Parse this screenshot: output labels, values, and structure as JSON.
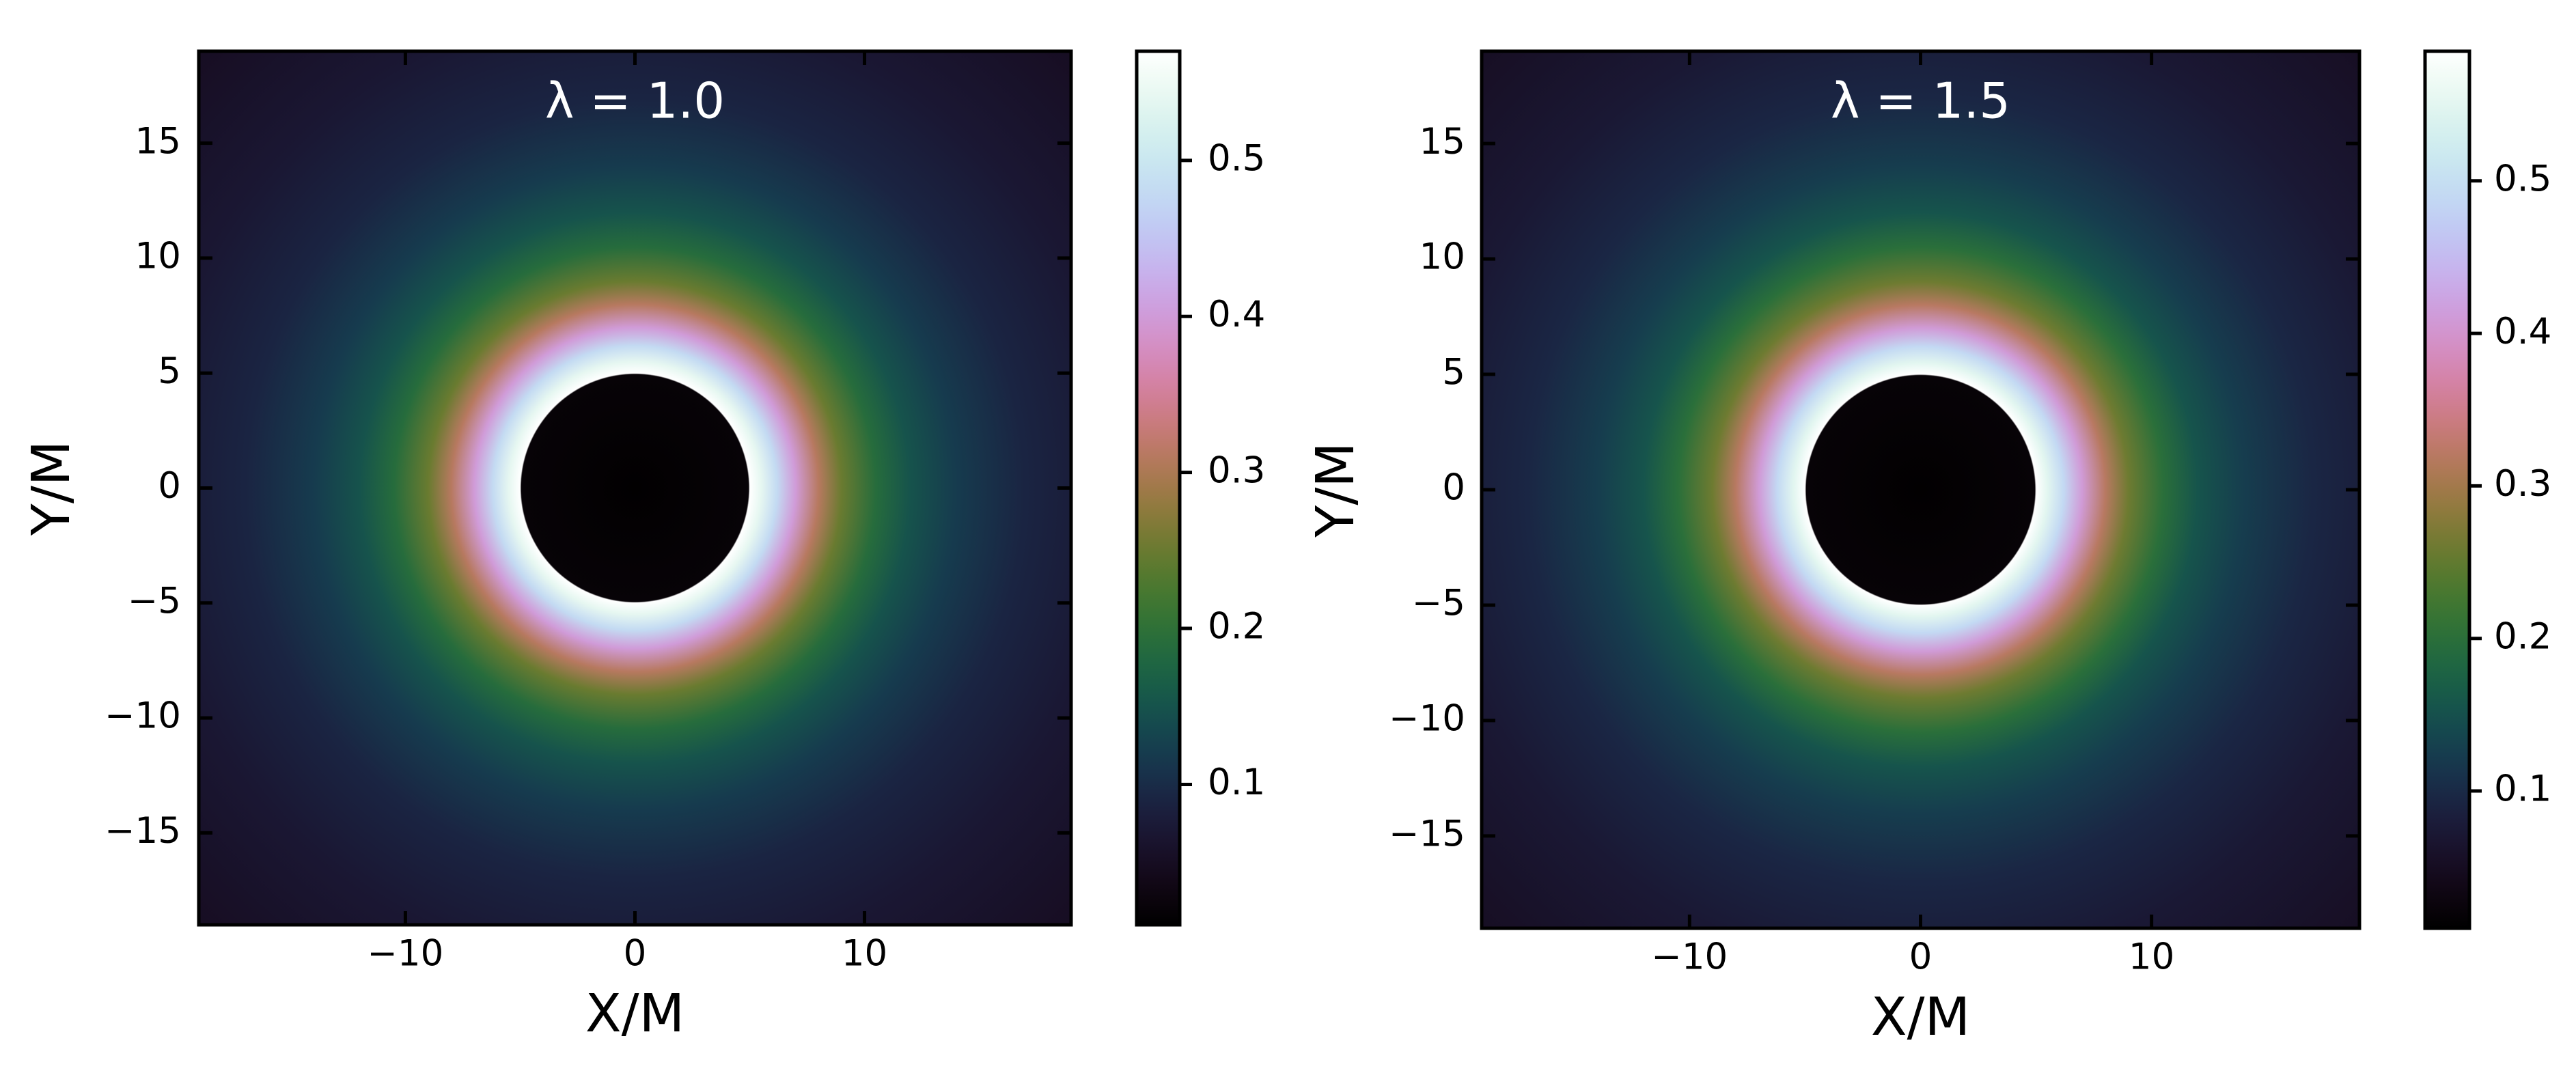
{
  "chart_data": [
    {
      "type": "heatmap",
      "title": "λ = 1.0",
      "xlabel": "X/M",
      "ylabel": "Y/M",
      "xlim": [
        -19,
        19
      ],
      "ylim": [
        -19,
        19
      ],
      "xticks": [
        {
          "value": -10,
          "label": "−10"
        },
        0,
        10
      ],
      "yticks": [
        {
          "value": -15,
          "label": "−15"
        },
        {
          "value": -10,
          "label": "−10"
        },
        {
          "value": -5,
          "label": "−5"
        },
        0,
        5,
        10,
        15
      ],
      "colormap": "cubehelix",
      "profile": {
        "r": [
          0,
          4.95,
          5,
          5.5,
          6.2,
          7,
          8,
          9,
          10.5,
          12,
          14,
          17,
          21,
          27
        ],
        "values": [
          0.012,
          0.02,
          0.57,
          0.54,
          0.48,
          0.4,
          0.31,
          0.25,
          0.19,
          0.15,
          0.12,
          0.09,
          0.07,
          0.05
        ]
      },
      "clim": [
        0.01,
        0.57
      ],
      "cticks": [
        0.1,
        0.2,
        0.3,
        0.4,
        0.5
      ]
    },
    {
      "type": "heatmap",
      "title": "λ = 1.5",
      "xlabel": "X/M",
      "ylabel": "Y/M",
      "xlim": [
        -19,
        19
      ],
      "ylim": [
        -19,
        19
      ],
      "xticks": [
        {
          "value": -10,
          "label": "−10"
        },
        0,
        10
      ],
      "yticks": [
        {
          "value": -15,
          "label": "−15"
        },
        {
          "value": -10,
          "label": "−10"
        },
        {
          "value": -5,
          "label": "−5"
        },
        0,
        5,
        10,
        15
      ],
      "colormap": "cubehelix",
      "profile": {
        "r": [
          0,
          4.95,
          5,
          5.5,
          6.2,
          7,
          8,
          9,
          10.5,
          12,
          14,
          17,
          21,
          27
        ],
        "values": [
          0.012,
          0.02,
          0.585,
          0.55,
          0.49,
          0.41,
          0.32,
          0.26,
          0.2,
          0.155,
          0.125,
          0.095,
          0.072,
          0.052
        ]
      },
      "clim": [
        0.01,
        0.585
      ],
      "cticks": [
        0.1,
        0.2,
        0.3,
        0.4,
        0.5
      ]
    }
  ]
}
